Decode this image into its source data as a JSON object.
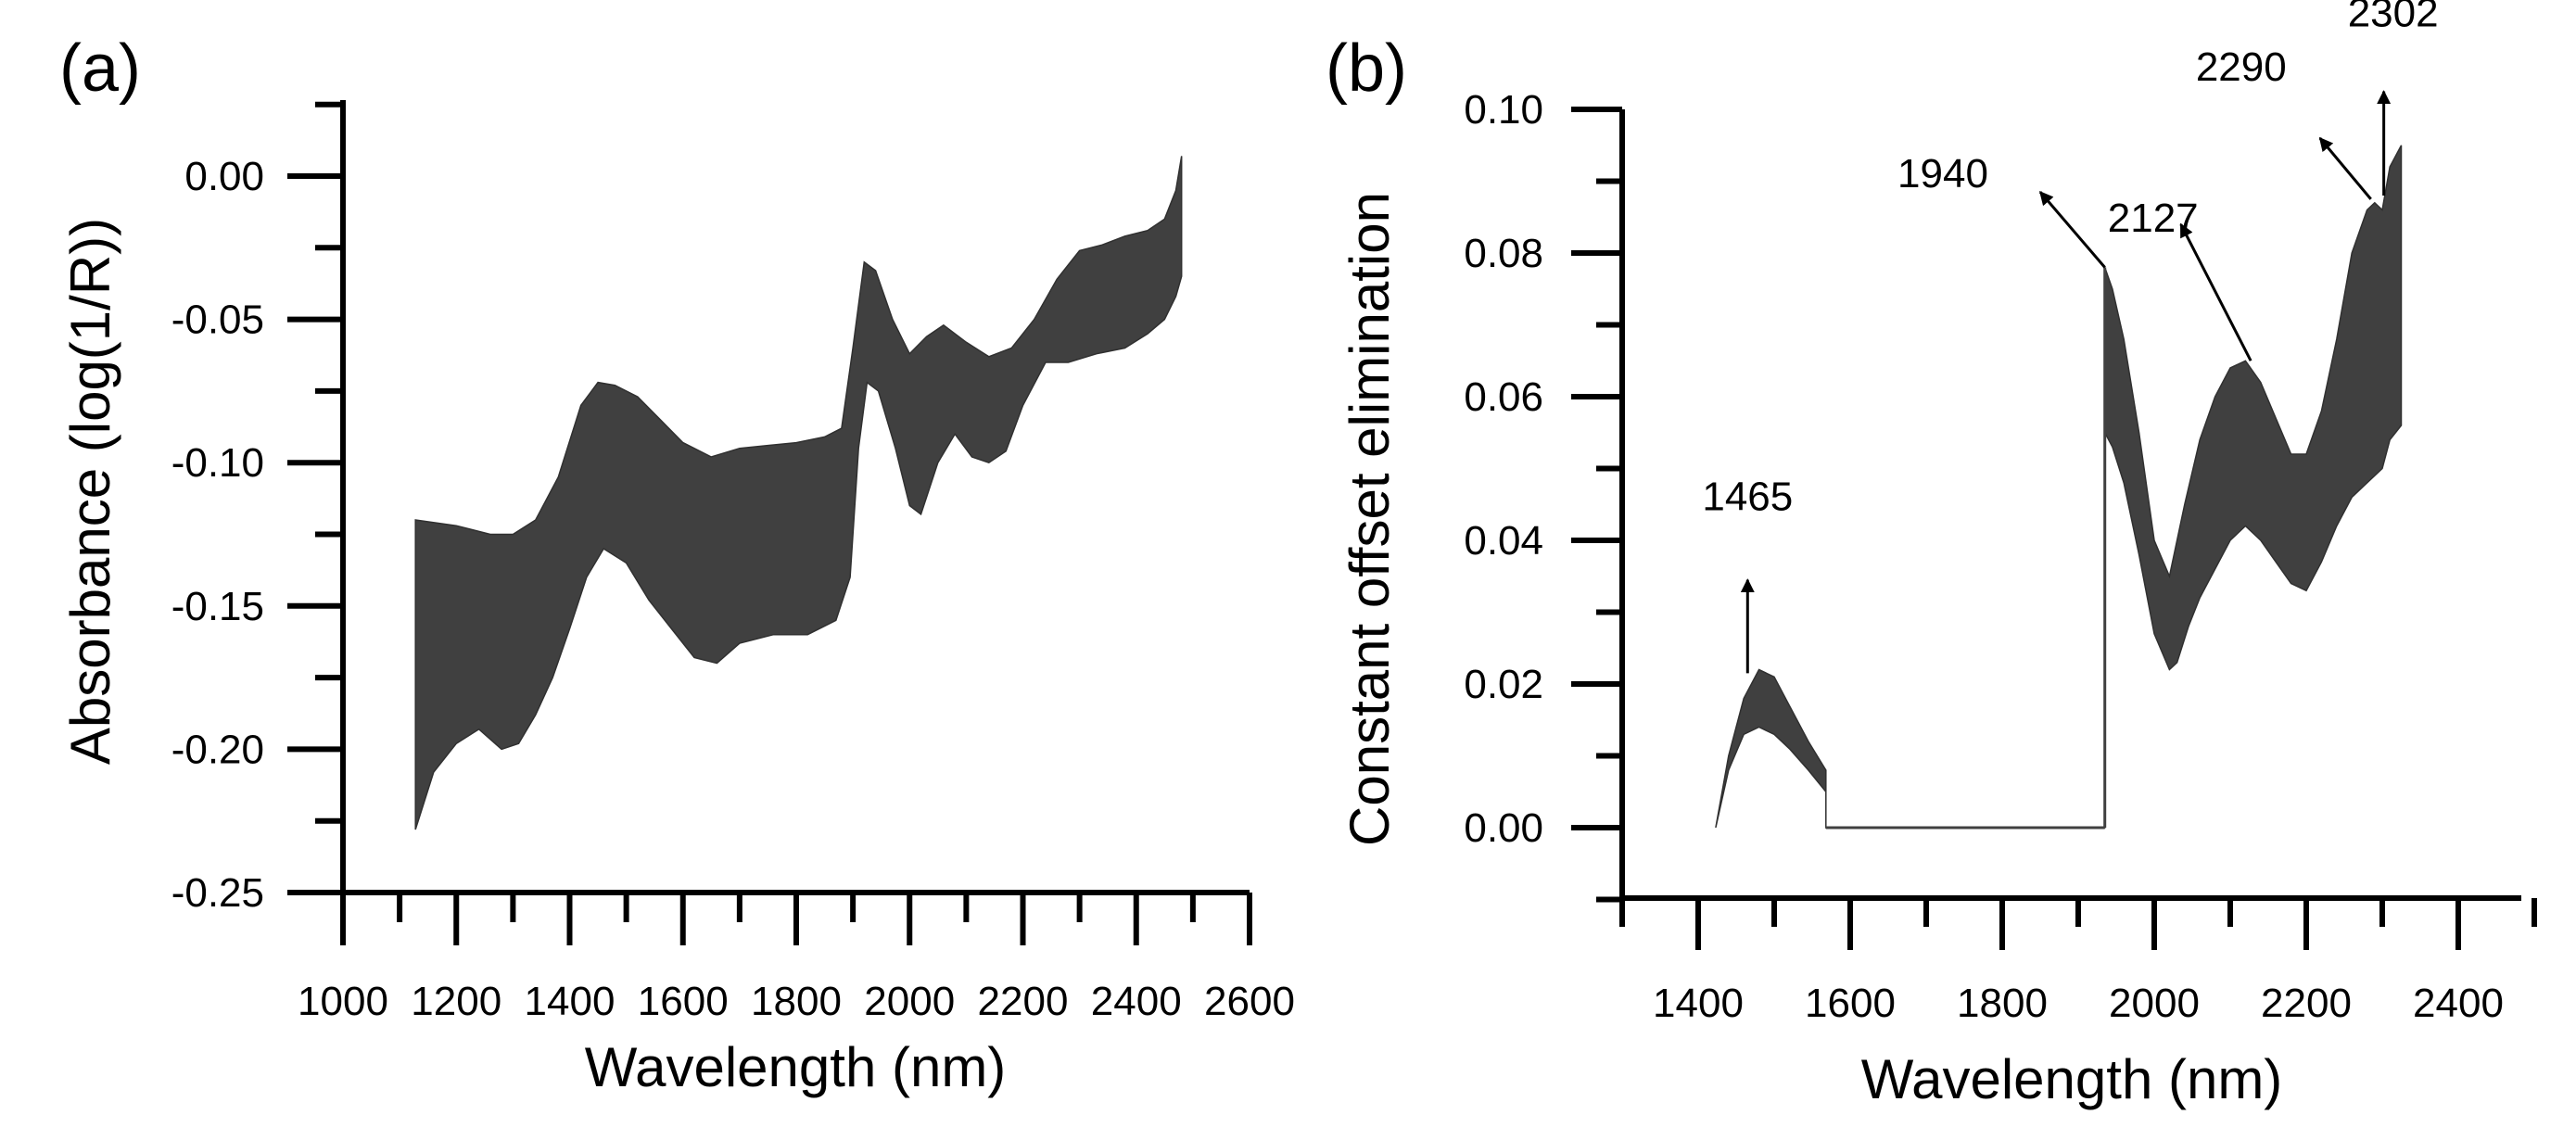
{
  "chart_data": [
    {
      "panel": "(a)",
      "type": "line",
      "xlabel": "Wavelength (nm)",
      "ylabel": "Absorbance (log(1/R))",
      "xlim": [
        1000,
        2600
      ],
      "ylim": [
        -0.25,
        0.03
      ],
      "xticks": [
        1000,
        1200,
        1400,
        1600,
        1800,
        2000,
        2200,
        2400,
        2600
      ],
      "xtick_labels": [
        "1000",
        "1200",
        "1400",
        "1600",
        "1800",
        "2000",
        "2200",
        "2400",
        "2600"
      ],
      "yticks": [
        -0.25,
        -0.2,
        -0.15,
        -0.1,
        -0.05,
        0.0
      ],
      "ytick_labels": [
        "-0.25",
        "-0.20",
        "-0.15",
        "-0.10",
        "-0.05",
        "0.00"
      ],
      "band_color": "#404040",
      "series": [
        {
          "name": "upper envelope",
          "x": [
            1128,
            1200,
            1260,
            1300,
            1340,
            1380,
            1420,
            1450,
            1480,
            1520,
            1560,
            1600,
            1650,
            1700,
            1750,
            1800,
            1850,
            1880,
            1900,
            1920,
            1940,
            1970,
            2000,
            2030,
            2060,
            2100,
            2140,
            2180,
            2220,
            2260,
            2300,
            2340,
            2380,
            2420,
            2450,
            2470,
            2480
          ],
          "y": [
            -0.12,
            -0.122,
            -0.125,
            -0.125,
            -0.12,
            -0.105,
            -0.08,
            -0.072,
            -0.073,
            -0.077,
            -0.085,
            -0.093,
            -0.098,
            -0.095,
            -0.094,
            -0.093,
            -0.091,
            -0.088,
            -0.06,
            -0.03,
            -0.033,
            -0.05,
            -0.062,
            -0.056,
            -0.052,
            -0.058,
            -0.063,
            -0.06,
            -0.05,
            -0.036,
            -0.026,
            -0.024,
            -0.021,
            -0.019,
            -0.015,
            -0.005,
            0.007
          ]
        },
        {
          "name": "lower envelope",
          "x": [
            1128,
            1160,
            1200,
            1240,
            1280,
            1310,
            1340,
            1370,
            1400,
            1430,
            1460,
            1500,
            1540,
            1580,
            1620,
            1660,
            1700,
            1760,
            1820,
            1870,
            1895,
            1910,
            1925,
            1945,
            1975,
            2000,
            2020,
            2050,
            2080,
            2110,
            2140,
            2170,
            2200,
            2240,
            2280,
            2330,
            2380,
            2420,
            2450,
            2470,
            2480
          ],
          "y": [
            -0.228,
            -0.208,
            -0.198,
            -0.193,
            -0.2,
            -0.198,
            -0.188,
            -0.175,
            -0.158,
            -0.14,
            -0.13,
            -0.135,
            -0.148,
            -0.158,
            -0.168,
            -0.17,
            -0.163,
            -0.16,
            -0.16,
            -0.155,
            -0.14,
            -0.095,
            -0.072,
            -0.075,
            -0.095,
            -0.115,
            -0.118,
            -0.1,
            -0.09,
            -0.098,
            -0.1,
            -0.096,
            -0.08,
            -0.065,
            -0.065,
            -0.062,
            -0.06,
            -0.055,
            -0.05,
            -0.042,
            -0.035
          ]
        }
      ]
    },
    {
      "panel": "(b)",
      "type": "line",
      "xlabel": "Wavelength (nm)",
      "ylabel": "Constant offset elimination",
      "xlim": [
        1300,
        2500
      ],
      "ylim": [
        -0.01,
        0.1
      ],
      "xticks": [
        1400,
        1600,
        1800,
        2000,
        2200,
        2400
      ],
      "xtick_labels": [
        "1400",
        "1600",
        "1800",
        "2000",
        "2200",
        "2400"
      ],
      "yticks": [
        0.0,
        0.02,
        0.04,
        0.06,
        0.08,
        0.1
      ],
      "ytick_labels": [
        "0.00",
        "0.02",
        "0.04",
        "0.06",
        "0.08",
        "0.10"
      ],
      "band_color": "#404040",
      "series": [
        {
          "name": "upper envelope",
          "x": [
            1423,
            1440,
            1460,
            1480,
            1500,
            1520,
            1545,
            1568,
            1568,
            1935,
            1935,
            1945,
            1960,
            1980,
            2000,
            2020,
            2040,
            2060,
            2080,
            2100,
            2120,
            2140,
            2160,
            2180,
            2200,
            2220,
            2240,
            2260,
            2280,
            2290,
            2300,
            2310,
            2325
          ],
          "y": [
            0.0,
            0.01,
            0.018,
            0.022,
            0.021,
            0.017,
            0.012,
            0.008,
            0.0,
            0.0,
            0.078,
            0.075,
            0.068,
            0.055,
            0.04,
            0.035,
            0.045,
            0.054,
            0.06,
            0.064,
            0.065,
            0.062,
            0.057,
            0.052,
            0.052,
            0.058,
            0.068,
            0.08,
            0.086,
            0.087,
            0.086,
            0.092,
            0.095
          ]
        },
        {
          "name": "lower envelope",
          "x": [
            1423,
            1440,
            1460,
            1480,
            1500,
            1520,
            1545,
            1568,
            1568,
            1935,
            1935,
            1945,
            1960,
            1980,
            2000,
            2020,
            2030,
            2045,
            2060,
            2080,
            2100,
            2120,
            2140,
            2160,
            2180,
            2200,
            2220,
            2240,
            2260,
            2280,
            2300,
            2310,
            2325
          ],
          "y": [
            0.0,
            0.008,
            0.013,
            0.014,
            0.013,
            0.011,
            0.008,
            0.005,
            0.0,
            0.0,
            0.055,
            0.053,
            0.048,
            0.038,
            0.027,
            0.022,
            0.023,
            0.028,
            0.032,
            0.036,
            0.04,
            0.042,
            0.04,
            0.037,
            0.034,
            0.033,
            0.037,
            0.042,
            0.046,
            0.048,
            0.05,
            0.054,
            0.056
          ]
        }
      ],
      "annotations": [
        {
          "label": "1465",
          "tip_x": 1465,
          "tip_y": 0.0345,
          "base_x": 1465,
          "base_y": 0.0215
        },
        {
          "label": "1940",
          "tip_x": 1850,
          "tip_y": 0.0885,
          "base_x": 1935,
          "base_y": 0.078
        },
        {
          "label": "2127",
          "tip_x": 2035,
          "tip_y": 0.084,
          "base_x": 2127,
          "base_y": 0.065
        },
        {
          "label": "2290",
          "tip_x": 2218,
          "tip_y": 0.096,
          "base_x": 2285,
          "base_y": 0.0875
        },
        {
          "label": "2302",
          "tip_x": 2302,
          "tip_y": 0.1025,
          "base_x": 2302,
          "base_y": 0.088
        }
      ]
    }
  ]
}
